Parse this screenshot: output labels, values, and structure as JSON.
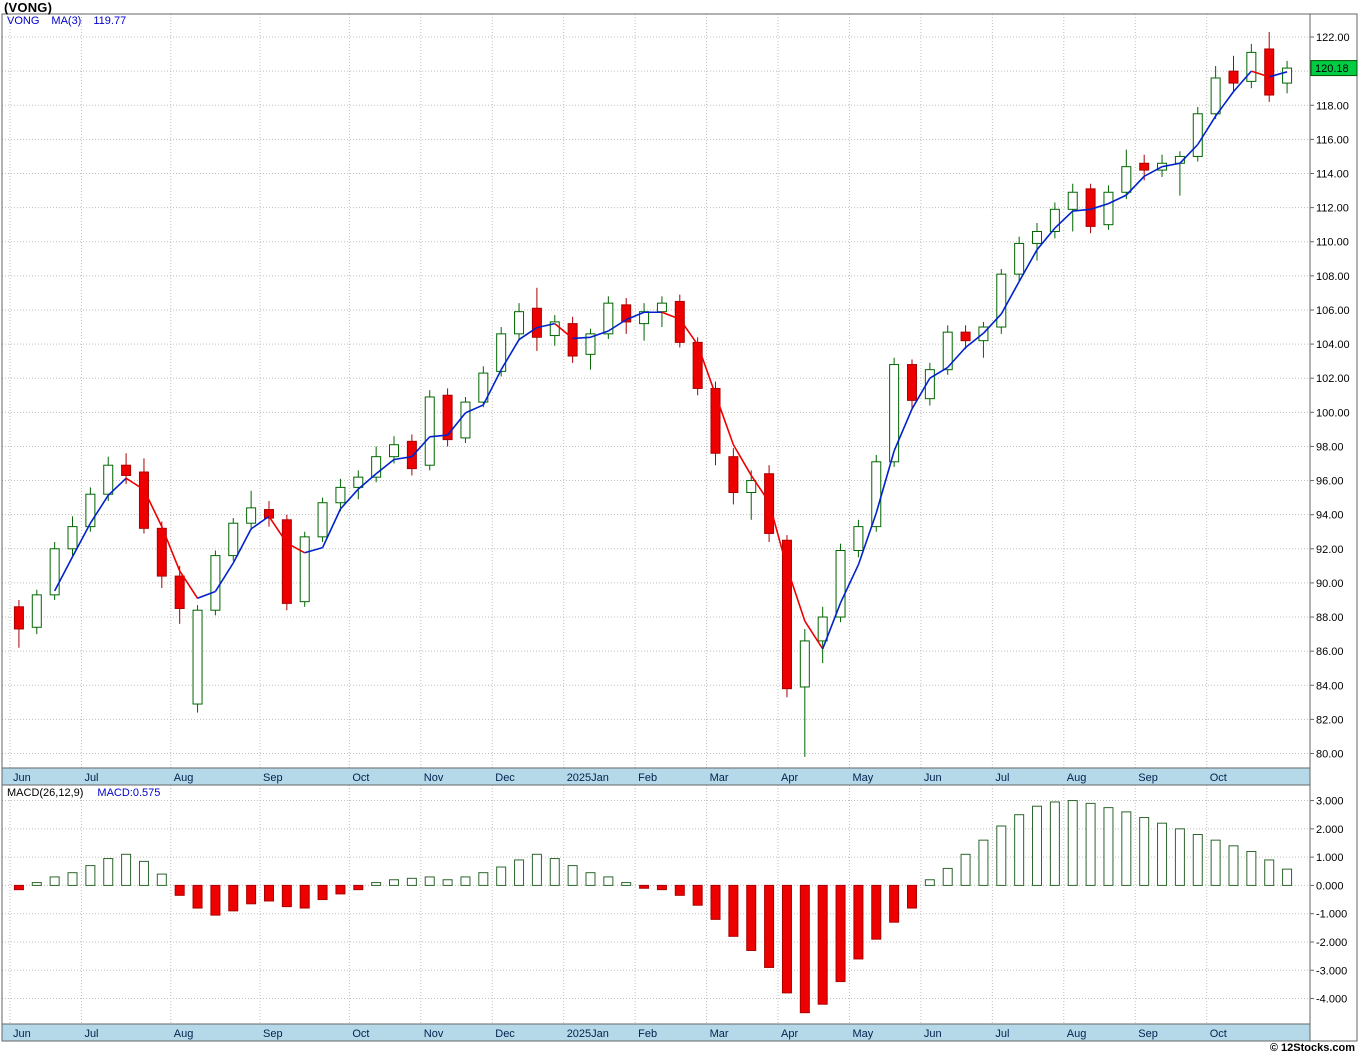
{
  "title": "(VONG)",
  "legend_main": {
    "symbol": "VONG",
    "ma_label": "MA(3)",
    "ma_value": "119.77"
  },
  "legend_macd": {
    "name": "MACD(26,12,9)",
    "value_label": "MACD:0.575"
  },
  "copyright": "© 12Stocks.com",
  "colors": {
    "up_fill": "#ffffff",
    "up_stroke": "#006600",
    "down_fill": "#ee0000",
    "down_stroke": "#aa0000",
    "ma_up": "#0022cc",
    "ma_down": "#ee0000",
    "band_bg": "#b5d9e9",
    "band_border": "#31708f",
    "grid": "#bfbfbf",
    "border": "#666666",
    "macd_pos_fill": "#ffffff",
    "macd_pos_stroke": "#2d662d",
    "macd_neg_fill": "#ee0000",
    "macd_neg_stroke": "#aa0000",
    "tag_bg": "#00cc44",
    "tag_border": "#005500",
    "tag_text": "#000000",
    "label_color": "#000000",
    "month_label_color": "#00224d"
  },
  "chart_data": [
    {
      "type": "candlestick",
      "symbol": "VONG",
      "overlay": "MA(3)",
      "ma_last": 119.77,
      "last_price": 120.18,
      "ylim": [
        79.15,
        123.35
      ],
      "y_ticks": [
        122,
        120,
        118,
        116,
        114,
        112,
        110,
        108,
        106,
        104,
        102,
        100,
        98,
        96,
        94,
        92,
        90,
        88,
        86,
        84,
        82,
        80
      ],
      "x_labels": [
        "Jun",
        "Jul",
        "Aug",
        "Sep",
        "Oct",
        "Nov",
        "Dec",
        "2025Jan",
        "Feb",
        "Mar",
        "Apr",
        "May",
        "Jun",
        "Jul",
        "Aug",
        "Sep",
        "Oct"
      ],
      "month_start_indices": [
        0,
        4,
        9,
        14,
        19,
        23,
        27,
        31,
        35,
        39,
        43,
        47,
        51,
        55,
        59,
        63,
        67
      ],
      "candles_ohlc": [
        [
          88.6,
          89.0,
          86.2,
          87.3
        ],
        [
          87.4,
          89.6,
          87.0,
          89.3
        ],
        [
          89.3,
          92.4,
          89.0,
          92.0
        ],
        [
          92.0,
          93.9,
          91.6,
          93.3
        ],
        [
          93.3,
          95.6,
          93.0,
          95.2
        ],
        [
          95.2,
          97.4,
          94.8,
          96.9
        ],
        [
          96.9,
          97.6,
          95.8,
          96.3
        ],
        [
          96.5,
          97.3,
          92.9,
          93.2
        ],
        [
          93.2,
          93.6,
          89.7,
          90.4
        ],
        [
          90.4,
          91.0,
          87.6,
          88.5
        ],
        [
          82.9,
          88.7,
          82.4,
          88.4
        ],
        [
          88.4,
          91.9,
          88.1,
          91.6
        ],
        [
          91.6,
          93.8,
          91.3,
          93.5
        ],
        [
          93.5,
          95.4,
          93.1,
          94.4
        ],
        [
          94.3,
          94.8,
          93.3,
          93.8
        ],
        [
          93.7,
          94.0,
          88.4,
          88.8
        ],
        [
          88.9,
          93.0,
          88.6,
          92.7
        ],
        [
          92.7,
          95.0,
          92.4,
          94.7
        ],
        [
          94.7,
          96.1,
          94.2,
          95.6
        ],
        [
          95.6,
          96.6,
          94.9,
          96.2
        ],
        [
          96.2,
          98.0,
          95.9,
          97.4
        ],
        [
          97.4,
          98.6,
          97.0,
          98.1
        ],
        [
          98.3,
          98.7,
          96.3,
          96.7
        ],
        [
          96.9,
          101.3,
          96.6,
          100.9
        ],
        [
          101.0,
          101.4,
          98.0,
          98.4
        ],
        [
          98.5,
          100.9,
          98.2,
          100.6
        ],
        [
          100.6,
          102.7,
          100.3,
          102.3
        ],
        [
          102.4,
          105.0,
          102.1,
          104.6
        ],
        [
          104.6,
          106.4,
          104.2,
          105.9
        ],
        [
          106.1,
          107.3,
          103.6,
          104.4
        ],
        [
          104.5,
          105.7,
          103.9,
          105.3
        ],
        [
          105.2,
          105.6,
          102.9,
          103.3
        ],
        [
          103.4,
          104.9,
          102.5,
          104.6
        ],
        [
          104.6,
          106.8,
          104.3,
          106.4
        ],
        [
          106.3,
          106.7,
          104.6,
          105.3
        ],
        [
          105.2,
          106.4,
          104.2,
          105.9
        ],
        [
          105.9,
          106.8,
          105.0,
          106.4
        ],
        [
          106.5,
          106.9,
          103.8,
          104.1
        ],
        [
          104.1,
          104.4,
          101.0,
          101.4
        ],
        [
          101.4,
          101.8,
          96.9,
          97.6
        ],
        [
          97.4,
          97.9,
          94.6,
          95.3
        ],
        [
          95.3,
          96.6,
          93.7,
          96.0
        ],
        [
          96.4,
          96.9,
          92.4,
          92.9
        ],
        [
          92.5,
          92.8,
          83.3,
          83.8
        ],
        [
          83.9,
          87.3,
          79.8,
          86.6
        ],
        [
          86.6,
          88.6,
          85.3,
          88.0
        ],
        [
          88.0,
          92.3,
          87.7,
          91.9
        ],
        [
          91.9,
          93.7,
          91.5,
          93.3
        ],
        [
          93.3,
          97.5,
          93.0,
          97.1
        ],
        [
          97.1,
          103.2,
          96.8,
          102.8
        ],
        [
          102.8,
          103.1,
          100.2,
          100.7
        ],
        [
          100.8,
          102.9,
          100.4,
          102.5
        ],
        [
          102.5,
          105.1,
          102.2,
          104.7
        ],
        [
          104.7,
          105.1,
          103.7,
          104.2
        ],
        [
          104.2,
          105.3,
          103.2,
          105.0
        ],
        [
          105.0,
          108.4,
          104.6,
          108.1
        ],
        [
          108.1,
          110.3,
          107.7,
          109.9
        ],
        [
          109.9,
          111.1,
          108.9,
          110.6
        ],
        [
          110.6,
          112.3,
          110.2,
          111.9
        ],
        [
          111.9,
          113.4,
          110.6,
          112.9
        ],
        [
          113.1,
          113.4,
          110.5,
          110.9
        ],
        [
          111.0,
          113.3,
          110.7,
          112.9
        ],
        [
          112.9,
          115.4,
          112.5,
          114.4
        ],
        [
          114.6,
          115.1,
          113.6,
          114.2
        ],
        [
          114.2,
          115.1,
          113.8,
          114.6
        ],
        [
          114.6,
          115.3,
          112.7,
          115.0
        ],
        [
          115.0,
          117.9,
          114.7,
          117.5
        ],
        [
          117.5,
          120.3,
          117.2,
          119.6
        ],
        [
          120.0,
          120.9,
          118.8,
          119.3
        ],
        [
          119.4,
          121.6,
          119.0,
          121.1
        ],
        [
          121.3,
          122.3,
          118.2,
          118.6
        ],
        [
          119.3,
          120.6,
          118.7,
          120.18
        ]
      ]
    },
    {
      "type": "bar",
      "name": "MACD(26,12,9)",
      "last_value": 0.575,
      "ylim": [
        -4.9,
        3.55
      ],
      "y_ticks": [
        3,
        2,
        1,
        0,
        -1,
        -2,
        -3,
        -4
      ],
      "values": [
        -0.15,
        0.1,
        0.3,
        0.45,
        0.7,
        0.95,
        1.1,
        0.85,
        0.4,
        -0.35,
        -0.8,
        -1.05,
        -0.9,
        -0.65,
        -0.55,
        -0.75,
        -0.8,
        -0.5,
        -0.3,
        -0.15,
        0.1,
        0.2,
        0.25,
        0.3,
        0.2,
        0.3,
        0.45,
        0.65,
        0.9,
        1.1,
        0.95,
        0.7,
        0.45,
        0.3,
        0.1,
        -0.1,
        -0.15,
        -0.35,
        -0.7,
        -1.2,
        -1.8,
        -2.3,
        -2.9,
        -3.8,
        -4.5,
        -4.2,
        -3.4,
        -2.6,
        -1.9,
        -1.3,
        -0.8,
        0.2,
        0.6,
        1.1,
        1.6,
        2.1,
        2.5,
        2.8,
        2.95,
        3.0,
        2.9,
        2.75,
        2.6,
        2.4,
        2.2,
        2.0,
        1.8,
        1.6,
        1.4,
        1.2,
        0.9,
        0.575
      ]
    }
  ]
}
